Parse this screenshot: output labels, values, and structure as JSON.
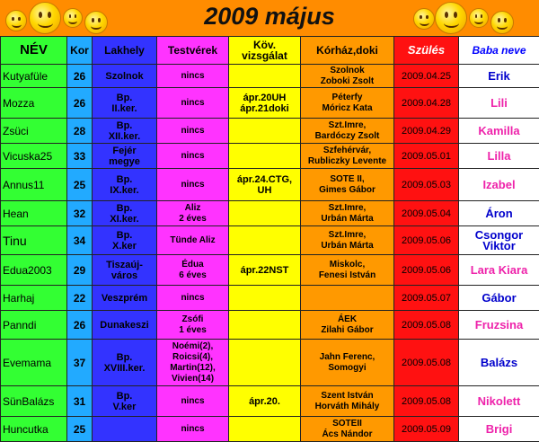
{
  "title": "2009 május",
  "headers": {
    "nev": "NÉV",
    "kor": "Kor",
    "lakhely": "Lakhely",
    "testverek": "Testvérek",
    "vizsgalat": "Köv. vizsgálat",
    "korhaz": "Kórház,doki",
    "szules": "Szülés",
    "baba": "Baba neve"
  },
  "colors": {
    "banner": "#ff8c00",
    "nev": "#33ff33",
    "kor": "#22aaff",
    "lakhely": "#3333ff",
    "testverek": "#ff33ff",
    "vizsgalat": "#ffff00",
    "korhaz": "#ff9900",
    "szules": "#ff1111",
    "boy_name": "#0000cc",
    "girl_name": "#ee22aa"
  },
  "rows": [
    {
      "nev": "Kutyafüle",
      "kor": "26",
      "lakhely": "Szolnok",
      "testverek": "nincs",
      "vizsgalat": "",
      "korhaz": "Szolnok\nZoboki Zsolt",
      "szules": "2009.04.25",
      "baba": "Erik",
      "baba_color": "blue"
    },
    {
      "nev": "Mozza",
      "kor": "26",
      "lakhely": "Bp.\nII.ker.",
      "testverek": "nincs",
      "vizsgalat": "ápr.20UH\nápr.21doki",
      "korhaz": "Péterfy\nMóricz Kata",
      "szules": "2009.04.28",
      "baba": "Lili",
      "baba_color": "pink"
    },
    {
      "nev": "Zsüci",
      "kor": "28",
      "lakhely": "Bp.\nXII.ker.",
      "testverek": "nincs",
      "vizsgalat": "",
      "korhaz": "Szt.Imre,\nBardóczy Zsolt",
      "szules": "2009.04.29",
      "baba": "Kamilla",
      "baba_color": "pink"
    },
    {
      "nev": "Vicuska25",
      "kor": "33",
      "lakhely": "Fejér\nmegye",
      "testverek": "nincs",
      "vizsgalat": "",
      "korhaz": "Szfehérvár,\nRubliczky Levente",
      "szules": "2009.05.01",
      "baba": "Lilla",
      "baba_color": "pink"
    },
    {
      "nev": "Annus11",
      "kor": "25",
      "lakhely": "Bp.\nIX.ker.",
      "testverek": "nincs",
      "vizsgalat": "ápr.24.CTG,\nUH",
      "korhaz": "SOTE II,\nGimes Gábor",
      "szules": "2009.05.03",
      "baba": "Izabel",
      "baba_color": "pink"
    },
    {
      "nev": "Hean",
      "kor": "32",
      "lakhely": "Bp.\nXI.ker.",
      "testverek": "Aliz\n2 éves",
      "vizsgalat": "",
      "korhaz": "Szt.Imre,\nUrbán Márta",
      "szules": "2009.05.04",
      "baba": "Áron",
      "baba_color": "blue"
    },
    {
      "nev": "Tinu",
      "kor": "34",
      "lakhely": "Bp.\nX.ker",
      "testverek": "Tünde Aliz",
      "vizsgalat": "",
      "korhaz": "Szt.Imre,\nUrbán Márta",
      "szules": "2009.05.06",
      "baba": "Csongor\nViktor",
      "baba_color": "blue"
    },
    {
      "nev": "Edua2003",
      "kor": "29",
      "lakhely": "Tiszaúj-\nváros",
      "testverek": "Édua\n6 éves",
      "vizsgalat": "ápr.22NST",
      "korhaz": "Miskolc,\nFenesi István",
      "szules": "2009.05.06",
      "baba": "Lara Kiara",
      "baba_color": "pink"
    },
    {
      "nev": "Harhaj",
      "kor": "22",
      "lakhely": "Veszprém",
      "testverek": "nincs",
      "vizsgalat": "",
      "korhaz": "",
      "szules": "2009.05.07",
      "baba": "Gábor",
      "baba_color": "blue"
    },
    {
      "nev": "Panndi",
      "kor": "26",
      "lakhely": "Dunakeszi",
      "testverek": "Zsófi\n1 éves",
      "vizsgalat": "",
      "korhaz": "ÁEK\nZilahi Gábor",
      "szules": "2009.05.08",
      "baba": "Fruzsina",
      "baba_color": "pink"
    },
    {
      "nev": "Evemama",
      "kor": "37",
      "lakhely": "Bp.\nXVIII.ker.",
      "testverek": "Noémi(2),\nRoicsi(4),\nMartin(12),\nVivien(14)",
      "vizsgalat": "",
      "korhaz": "Jahn Ferenc,\nSomogyi",
      "szules": "2009.05.08",
      "baba": "Balázs",
      "baba_color": "blue"
    },
    {
      "nev": "SünBalázs",
      "kor": "31",
      "lakhely": "Bp.\nV.ker",
      "testverek": "nincs",
      "vizsgalat": "ápr.20.",
      "korhaz": "Szent István\nHorváth Mihály",
      "szules": "2009.05.08",
      "baba": "Nikolett",
      "baba_color": "pink"
    },
    {
      "nev": "Huncutka",
      "kor": "25",
      "lakhely": "",
      "testverek": "nincs",
      "vizsgalat": "",
      "korhaz": "SOTEII\nÁcs Nándor",
      "szules": "2009.05.09",
      "baba": "Brigi",
      "baba_color": "pink"
    }
  ]
}
